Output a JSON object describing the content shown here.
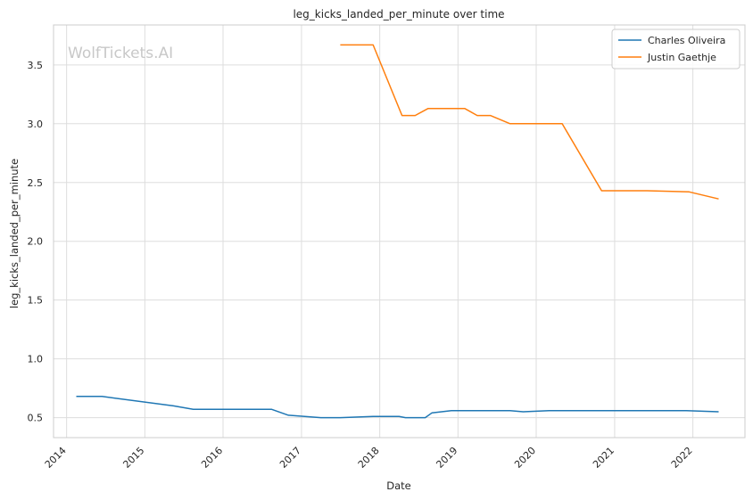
{
  "chart_data": {
    "type": "line",
    "title": "leg_kicks_landed_per_minute over time",
    "xlabel": "Date",
    "ylabel": "leg_kicks_landed_per_minute",
    "watermark": "WolfTickets.AI",
    "xlim": [
      "2013-11-01",
      "2022-09-01"
    ],
    "ylim": [
      0.33,
      3.84
    ],
    "x_ticks": [
      "2014",
      "2015",
      "2016",
      "2017",
      "2018",
      "2019",
      "2020",
      "2021",
      "2022"
    ],
    "y_ticks": [
      "0.5",
      "1.0",
      "1.5",
      "2.0",
      "2.5",
      "3.0",
      "3.5"
    ],
    "y_tick_values": [
      0.5,
      1.0,
      1.5,
      2.0,
      2.5,
      3.0,
      3.5
    ],
    "grid": true,
    "legend_position": "top-right",
    "series": [
      {
        "name": "Charles Oliveira",
        "color": "#1f77b4",
        "points": [
          [
            "2014-02-15",
            0.68
          ],
          [
            "2014-06-15",
            0.68
          ],
          [
            "2015-05-15",
            0.6
          ],
          [
            "2015-08-15",
            0.57
          ],
          [
            "2016-08-15",
            0.57
          ],
          [
            "2016-11-01",
            0.52
          ],
          [
            "2017-04-01",
            0.5
          ],
          [
            "2017-07-01",
            0.5
          ],
          [
            "2017-12-01",
            0.51
          ],
          [
            "2018-04-01",
            0.51
          ],
          [
            "2018-05-01",
            0.5
          ],
          [
            "2018-08-01",
            0.5
          ],
          [
            "2018-09-01",
            0.54
          ],
          [
            "2018-12-01",
            0.56
          ],
          [
            "2019-02-01",
            0.56
          ],
          [
            "2019-05-01",
            0.56
          ],
          [
            "2019-09-01",
            0.56
          ],
          [
            "2019-11-01",
            0.55
          ],
          [
            "2020-03-01",
            0.56
          ],
          [
            "2020-12-01",
            0.56
          ],
          [
            "2021-12-01",
            0.56
          ],
          [
            "2022-05-01",
            0.55
          ]
        ]
      },
      {
        "name": "Justin Gaethje",
        "color": "#ff7f0e",
        "points": [
          [
            "2017-07-01",
            3.67
          ],
          [
            "2017-12-01",
            3.67
          ],
          [
            "2018-04-15",
            3.07
          ],
          [
            "2018-06-15",
            3.07
          ],
          [
            "2018-08-15",
            3.13
          ],
          [
            "2019-02-01",
            3.13
          ],
          [
            "2019-04-01",
            3.07
          ],
          [
            "2019-06-01",
            3.07
          ],
          [
            "2019-09-01",
            3.0
          ],
          [
            "2020-05-01",
            3.0
          ],
          [
            "2020-11-01",
            2.43
          ],
          [
            "2021-06-01",
            2.43
          ],
          [
            "2021-12-15",
            2.42
          ],
          [
            "2022-05-01",
            2.36
          ]
        ]
      }
    ]
  }
}
